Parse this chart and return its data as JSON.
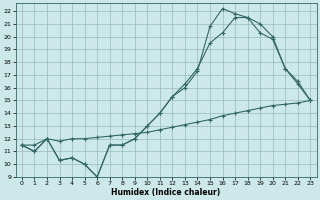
{
  "xlabel": "Humidex (Indice chaleur)",
  "bg_color": "#cce8e8",
  "grid_color": "#99bbbb",
  "line_color": "#336666",
  "xlim": [
    -0.5,
    23.5
  ],
  "ylim": [
    9,
    22.6
  ],
  "xticks": [
    0,
    1,
    2,
    3,
    4,
    5,
    6,
    7,
    8,
    9,
    10,
    11,
    12,
    13,
    14,
    15,
    16,
    17,
    18,
    19,
    20,
    21,
    22,
    23
  ],
  "yticks": [
    9,
    10,
    11,
    12,
    13,
    14,
    15,
    16,
    17,
    18,
    19,
    20,
    21,
    22
  ],
  "line1_x": [
    0,
    1,
    2,
    3,
    4,
    5,
    6,
    7,
    8,
    9,
    10,
    11,
    12,
    13,
    14,
    15,
    16,
    17,
    18,
    19,
    20,
    21,
    22,
    23
  ],
  "line1_y": [
    11.5,
    11.0,
    12.0,
    10.3,
    10.5,
    10.0,
    9.0,
    11.5,
    11.5,
    12.0,
    13.0,
    14.0,
    15.3,
    16.3,
    17.5,
    19.5,
    20.3,
    21.5,
    21.5,
    20.3,
    19.8,
    17.5,
    16.3,
    15.0
  ],
  "line2_x": [
    0,
    1,
    2,
    3,
    4,
    5,
    6,
    7,
    8,
    9,
    10,
    11,
    12,
    13,
    14,
    15,
    16,
    17,
    18,
    19,
    20,
    21,
    22,
    23
  ],
  "line2_y": [
    11.5,
    11.0,
    12.0,
    10.3,
    10.5,
    10.0,
    9.0,
    11.5,
    11.5,
    12.0,
    13.0,
    14.0,
    15.3,
    16.0,
    17.3,
    20.8,
    22.2,
    21.8,
    21.5,
    21.0,
    20.0,
    17.5,
    16.5,
    15.0
  ],
  "line3_x": [
    0,
    1,
    2,
    3,
    4,
    5,
    6,
    7,
    8,
    9,
    10,
    11,
    12,
    13,
    14,
    15,
    16,
    17,
    18,
    19,
    20,
    21,
    22,
    23
  ],
  "line3_y": [
    11.5,
    11.5,
    12.0,
    11.8,
    12.0,
    12.0,
    12.1,
    12.2,
    12.3,
    12.4,
    12.5,
    12.7,
    12.9,
    13.1,
    13.3,
    13.5,
    13.8,
    14.0,
    14.2,
    14.4,
    14.6,
    14.7,
    14.8,
    15.0
  ],
  "marker": "+"
}
